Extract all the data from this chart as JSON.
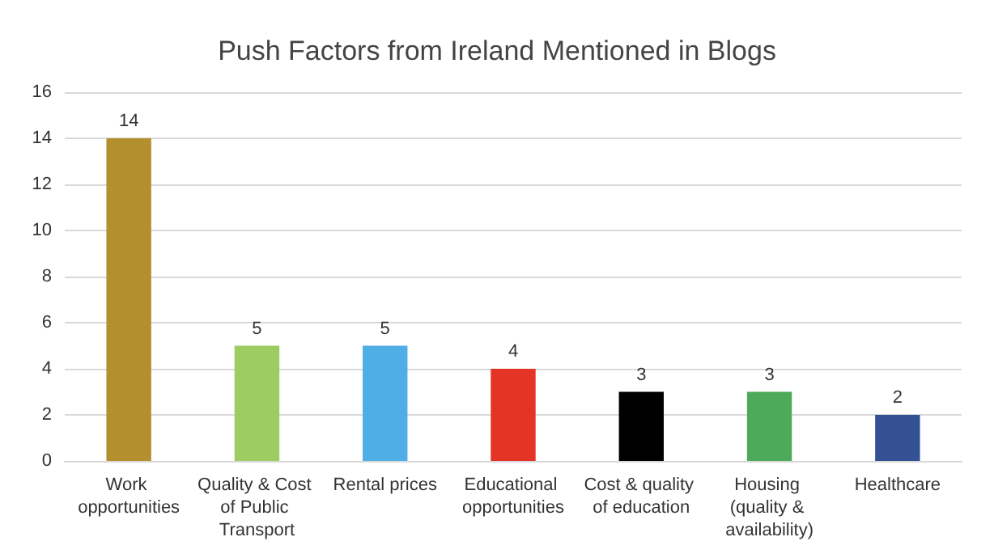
{
  "chart_data": {
    "type": "bar",
    "title": "Push Factors from Ireland Mentioned in Blogs",
    "categories": [
      "Work opportunities",
      "Quality & Cost of Public Transport",
      "Rental prices",
      "Educational opportunities",
      "Cost & quality of education",
      "Housing (quality & availability)",
      "Healthcare"
    ],
    "values": [
      14,
      5,
      5,
      4,
      3,
      3,
      2
    ],
    "colors": [
      "#b38f2e",
      "#9ccc62",
      "#4faee6",
      "#e33426",
      "#000000",
      "#4caa5a",
      "#345194"
    ],
    "ylim": [
      0,
      16
    ],
    "yticks": [
      0,
      2,
      4,
      6,
      8,
      10,
      12,
      14,
      16
    ],
    "grid": "y",
    "data_labels": true
  }
}
